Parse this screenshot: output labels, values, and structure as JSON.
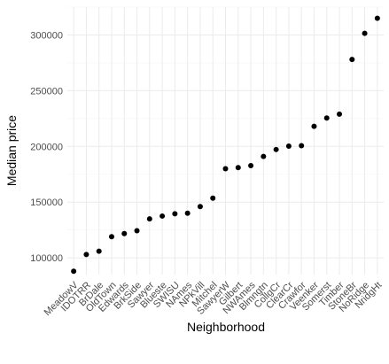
{
  "chart_data": {
    "type": "scatter",
    "title": "",
    "xlabel": "Neighborhood",
    "ylabel": "Median price",
    "grid": true,
    "ylim": [
      85000,
      325000
    ],
    "yticks": [
      100000,
      150000,
      200000,
      250000,
      300000
    ],
    "ytick_labels": [
      "100000",
      "150000",
      "200000",
      "250000",
      "300000"
    ],
    "categories": [
      "MeadowV",
      "IDOTRR",
      "BrDale",
      "OldTown",
      "Edwards",
      "BrkSide",
      "Sawyer",
      "Blueste",
      "SWISU",
      "NAmes",
      "NPkVill",
      "Mitchel",
      "SawyerW",
      "Gilbert",
      "NWAmes",
      "Blmngtn",
      "CollgCr",
      "ClearCr",
      "Crawfor",
      "Veenker",
      "Somerst",
      "Timber",
      "StoneBr",
      "NoRidge",
      "NridgHt"
    ],
    "values": [
      88000,
      103000,
      106000,
      119000,
      121750,
      124300,
      135000,
      137500,
      139500,
      140000,
      146000,
      153500,
      180000,
      181000,
      182750,
      191000,
      197200,
      200250,
      200650,
      218000,
      225500,
      228950,
      278000,
      301500,
      315000
    ]
  }
}
